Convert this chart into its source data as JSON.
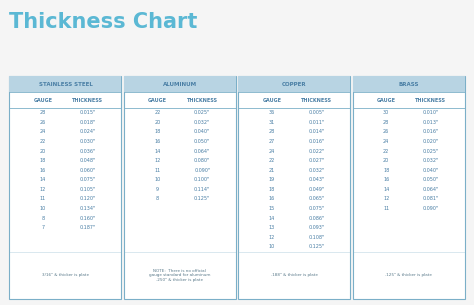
{
  "title": "Thickness Chart",
  "title_color": "#5bb8d4",
  "background_color": "#f5f5f5",
  "table_border_color": "#7bafc8",
  "header_bg_color": "#b8d4e3",
  "header_text_color": "#4a7fa5",
  "data_text_color": "#4a7fa5",
  "note_text_color": "#5a7a8a",
  "sections": [
    {
      "name": "STAINLESS STEEL",
      "note": "3/16\" & thicker is plate",
      "gauges": [
        "28",
        "26",
        "24",
        "22",
        "20",
        "18",
        "16",
        "14",
        "12",
        "11",
        "10",
        "8",
        "7"
      ],
      "thicknesses": [
        "0.015\"",
        "0.018\"",
        "0.024\"",
        "0.030\"",
        "0.036\"",
        "0.048\"",
        "0.060\"",
        "0.075\"",
        "0.105\"",
        "0.120\"",
        "0.134\"",
        "0.160\"",
        "0.187\""
      ]
    },
    {
      "name": "ALUMINUM",
      "note": "NOTE:  There is no official\ngauge standard for aluminum\n.250\" & thicker is plate",
      "gauges": [
        "22",
        "20",
        "18",
        "16",
        "14",
        "12",
        "11",
        "10",
        "9",
        "8"
      ],
      "thicknesses": [
        "0.025\"",
        "0.032\"",
        "0.040\"",
        "0.050\"",
        "0.064\"",
        "0.080\"",
        "0.090\"",
        "0.100\"",
        "0.114\"",
        "0.125\""
      ]
    },
    {
      "name": "COPPER",
      "note": ".188\" & thicker is plate",
      "gauges": [
        "36",
        "31",
        "28",
        "27",
        "24",
        "22",
        "21",
        "19",
        "18",
        "16",
        "15",
        "14",
        "13",
        "12",
        "10"
      ],
      "thicknesses": [
        "0.005\"",
        "0.011\"",
        "0.014\"",
        "0.016\"",
        "0.022\"",
        "0.027\"",
        "0.032\"",
        "0.043\"",
        "0.049\"",
        "0.065\"",
        "0.075\"",
        "0.086\"",
        "0.093\"",
        "0.108\"",
        "0.125\""
      ]
    },
    {
      "name": "BRASS",
      "note": ".125\" & thicker is plate",
      "gauges": [
        "30",
        "28",
        "26",
        "24",
        "22",
        "20",
        "18",
        "16",
        "14",
        "12",
        "11"
      ],
      "thicknesses": [
        "0.010\"",
        "0.013\"",
        "0.016\"",
        "0.020\"",
        "0.025\"",
        "0.032\"",
        "0.040\"",
        "0.050\"",
        "0.064\"",
        "0.081\"",
        "0.090\""
      ]
    }
  ]
}
